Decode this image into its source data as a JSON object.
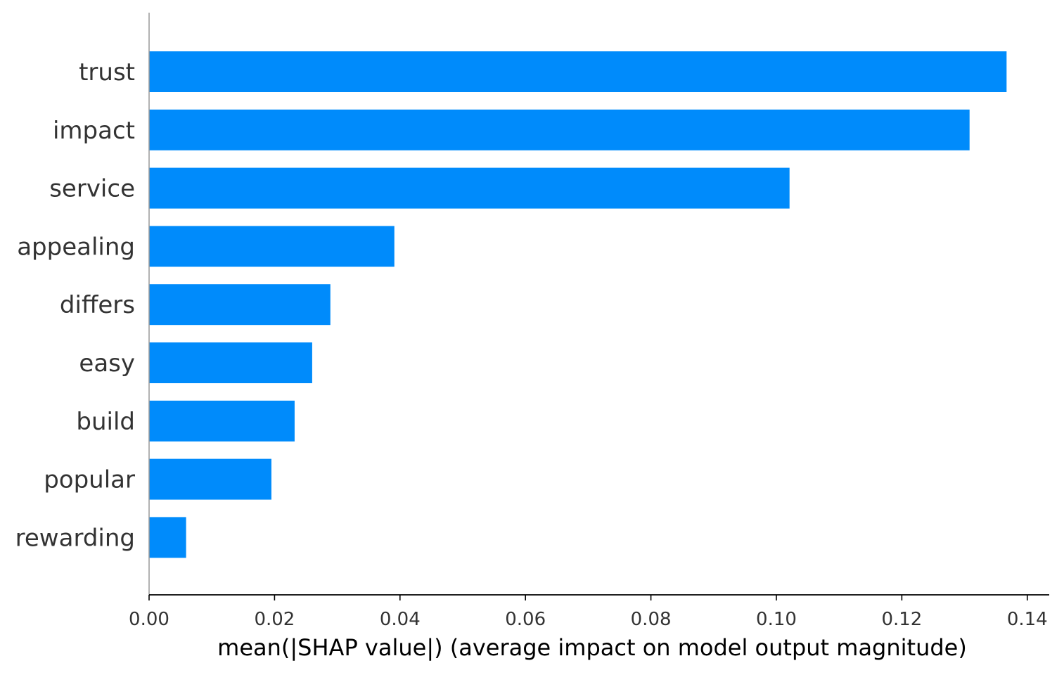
{
  "chart_data": {
    "type": "bar",
    "orientation": "horizontal",
    "categories": [
      "trust",
      "impact",
      "service",
      "appealing",
      "differs",
      "easy",
      "build",
      "popular",
      "rewarding"
    ],
    "values": [
      0.1367,
      0.1308,
      0.1021,
      0.0391,
      0.0289,
      0.026,
      0.0232,
      0.0195,
      0.0059
    ],
    "title": "",
    "xlabel": "mean(|SHAP value|) (average impact on model output magnitude)",
    "ylabel": "",
    "xlim": [
      0,
      0.1435
    ],
    "xticks": [
      0.0,
      0.02,
      0.04,
      0.06,
      0.08,
      0.1,
      0.12,
      0.14
    ],
    "xtick_labels": [
      "0.00",
      "0.02",
      "0.04",
      "0.06",
      "0.08",
      "0.10",
      "0.12",
      "0.14"
    ],
    "grid": false,
    "colors": {
      "bar": "#008bfb",
      "axis": "#000000",
      "left_spine": "#999999",
      "label": "#333333"
    }
  }
}
